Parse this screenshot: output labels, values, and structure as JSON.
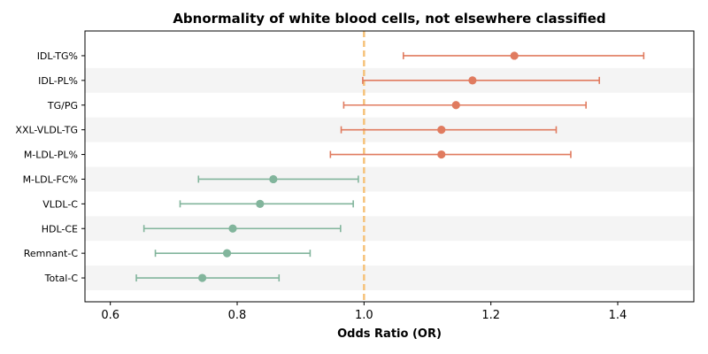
{
  "chart_data": {
    "type": "forest",
    "title": "Abnormality of white blood cells, not elsewhere classified",
    "xlabel": "Odds Ratio (OR)",
    "ylabel": "",
    "xlim": [
      0.56,
      1.52
    ],
    "xticks": [
      0.6,
      0.8,
      1.0,
      1.2,
      1.4
    ],
    "xtick_labels": [
      "0.6",
      "0.8",
      "1.0",
      "1.2",
      "1.4"
    ],
    "reference_line": 1.0,
    "reference_color": "#f5c27a",
    "band_color": "#f4f4f4",
    "colors": {
      "increased": "#e07b5f",
      "decreased": "#82b59c"
    },
    "items": [
      {
        "label": "IDL-TG%",
        "or": 1.237,
        "lower": 1.062,
        "upper": 1.441,
        "direction": "increased"
      },
      {
        "label": "IDL-PL%",
        "or": 1.171,
        "lower": 0.998,
        "upper": 1.371,
        "direction": "increased"
      },
      {
        "label": "TG/PG",
        "or": 1.145,
        "lower": 0.968,
        "upper": 1.35,
        "direction": "increased"
      },
      {
        "label": "XXL-VLDL-TG",
        "or": 1.122,
        "lower": 0.964,
        "upper": 1.303,
        "direction": "increased"
      },
      {
        "label": "M-LDL-PL%",
        "or": 1.122,
        "lower": 0.947,
        "upper": 1.326,
        "direction": "increased"
      },
      {
        "label": "M-LDL-FC%",
        "or": 0.857,
        "lower": 0.739,
        "upper": 0.991,
        "direction": "decreased"
      },
      {
        "label": "VLDL-C",
        "or": 0.836,
        "lower": 0.71,
        "upper": 0.983,
        "direction": "decreased"
      },
      {
        "label": "HDL-CE",
        "or": 0.793,
        "lower": 0.653,
        "upper": 0.963,
        "direction": "decreased"
      },
      {
        "label": "Remnant-C",
        "or": 0.784,
        "lower": 0.671,
        "upper": 0.915,
        "direction": "decreased"
      },
      {
        "label": "Total-C",
        "or": 0.745,
        "lower": 0.641,
        "upper": 0.866,
        "direction": "decreased"
      }
    ]
  }
}
